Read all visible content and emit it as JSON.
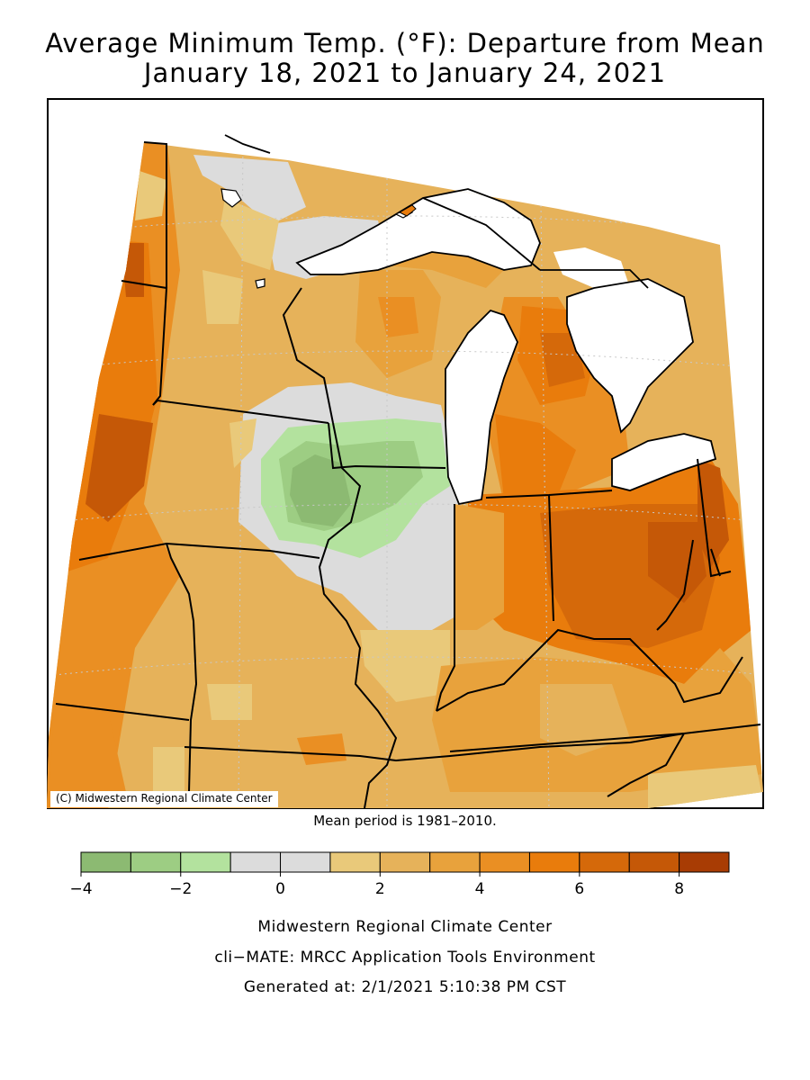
{
  "title": {
    "line1": "Average Minimum Temp. (°F): Departure from Mean",
    "line2": "January 18, 2021 to January 24, 2021"
  },
  "map": {
    "copyright": "(C) Midwestern Regional Climate Center",
    "mean_period": "Mean period is 1981–2010."
  },
  "legend": {
    "colors": [
      "#8cba72",
      "#9dcd83",
      "#b3e29e",
      "#dcdcdc",
      "#dcdcdc",
      "#e9c97a",
      "#e6b25a",
      "#e8a23c",
      "#ea8f23",
      "#e97c0c",
      "#d5690a",
      "#c55807",
      "#a83c04"
    ],
    "boundaries": [
      -4,
      -3,
      -2,
      -1,
      0,
      1,
      2,
      3,
      4,
      5,
      6,
      7,
      8,
      9
    ],
    "tick_labels": [
      {
        "value": -4,
        "text": "−4"
      },
      {
        "value": -2,
        "text": "−2"
      },
      {
        "value": 0,
        "text": "0"
      },
      {
        "value": 2,
        "text": "2"
      },
      {
        "value": 4,
        "text": "4"
      },
      {
        "value": 6,
        "text": "6"
      },
      {
        "value": 8,
        "text": "8"
      }
    ]
  },
  "footer": {
    "line1": "Midwestern Regional Climate Center",
    "line2": "cli−MATE: MRCC Application Tools Environment",
    "line3": "Generated at: 2/1/2021 5:10:38 PM CST"
  }
}
